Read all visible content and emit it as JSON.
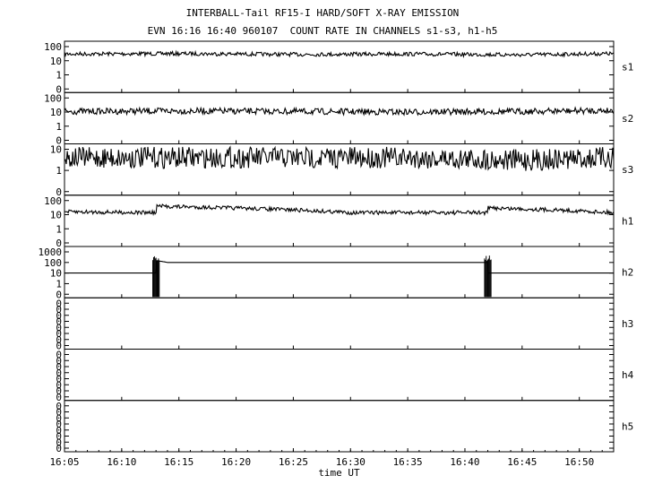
{
  "title": "INTERBALL-Tail RF15-I HARD/SOFT X-RAY EMISSION",
  "subtitle": "EVN 16:16 16:40 960107  COUNT RATE IN CHANNELS s1-s3, h1-h5",
  "chart_data": {
    "type": "line",
    "title": "INTERBALL-Tail RF15-I HARD/SOFT X-RAY EMISSION",
    "subtitle": "EVN 16:16 16:40 960107  COUNT RATE IN CHANNELS s1-s3, h1-h5",
    "xlabel": "time UT",
    "x_ticks": [
      "16:05",
      "16:10",
      "16:15",
      "16:20",
      "16:25",
      "16:30",
      "16:35",
      "16:40",
      "16:45",
      "16:50"
    ],
    "x_range": [
      "16:05",
      "16:53"
    ],
    "y_scale": "log",
    "grid": false,
    "panels": [
      {
        "name": "s1",
        "ytick_labels": [
          "100",
          "10",
          "1",
          "0"
        ],
        "series": [
          {
            "name": "s1",
            "x": [
              "16:05",
              "16:15",
              "16:25",
              "16:35",
              "16:45",
              "16:53"
            ],
            "values": [
              30,
              32,
              28,
              30,
              26,
              32
            ]
          }
        ]
      },
      {
        "name": "s2",
        "ytick_labels": [
          "100",
          "10",
          "1",
          "0"
        ],
        "series": [
          {
            "name": "s2",
            "x": [
              "16:05",
              "16:15",
              "16:25",
              "16:35",
              "16:45",
              "16:53"
            ],
            "values": [
              11,
              12,
              11,
              10,
              11,
              13
            ]
          }
        ]
      },
      {
        "name": "s3",
        "ytick_labels": [
          "10",
          "1",
          "0"
        ],
        "series": [
          {
            "name": "s3",
            "x": [
              "16:05",
              "16:15",
              "16:25",
              "16:35",
              "16:45",
              "16:53"
            ],
            "values": [
              4,
              4,
              4,
              4,
              3,
              4
            ]
          }
        ]
      },
      {
        "name": "h1",
        "ytick_labels": [
          "100",
          "10",
          "1",
          "0"
        ],
        "series": [
          {
            "name": "h1",
            "x": [
              "16:05",
              "16:13",
              "16:13",
              "16:30",
              "16:42",
              "16:42",
              "16:53"
            ],
            "values": [
              16,
              14,
              40,
              14,
              14,
              30,
              14
            ]
          }
        ]
      },
      {
        "name": "h2",
        "ytick_labels": [
          "1000",
          "100",
          "10",
          "1",
          "0"
        ],
        "series": [
          {
            "name": "h2",
            "x": [
              "16:05",
              "16:13",
              "16:13",
              "16:14",
              "16:42",
              "16:42",
              "16:53"
            ],
            "values": [
              10,
              10,
              150,
              100,
              100,
              10,
              10
            ]
          }
        ]
      },
      {
        "name": "h3",
        "ytick_labels": [
          "0",
          "0",
          "0",
          "0",
          "0",
          "0",
          "0",
          "0"
        ],
        "series": []
      },
      {
        "name": "h4",
        "ytick_labels": [
          "0",
          "0",
          "0",
          "0",
          "0",
          "0",
          "0",
          "0"
        ],
        "series": []
      },
      {
        "name": "h5",
        "ytick_labels": [
          "0",
          "0",
          "0",
          "0",
          "0",
          "0",
          "0",
          "0"
        ],
        "series": []
      }
    ]
  }
}
